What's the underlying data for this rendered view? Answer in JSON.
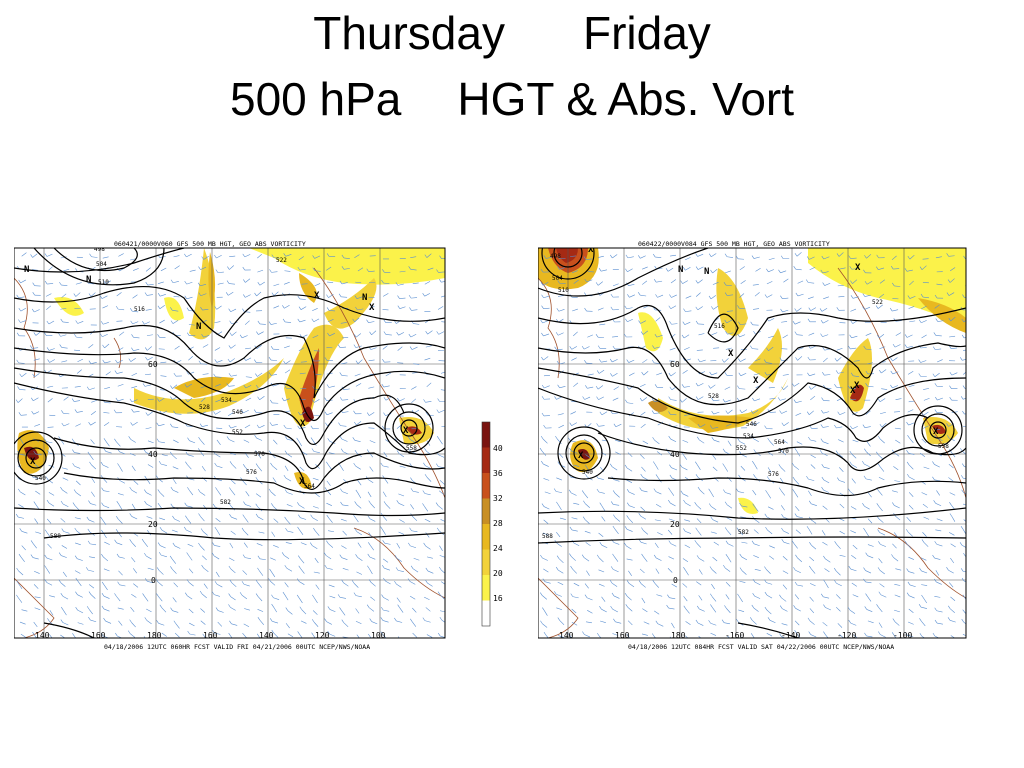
{
  "title": {
    "line1_left": "Thursday",
    "line1_right": "Friday",
    "line2_left": "500 hPa",
    "line2_right": "HGT & Abs. Vort"
  },
  "maps": [
    {
      "header": "060421/0000V060 GFS 500 MB HGT, GEO ABS VORTICITY",
      "footer": "04/18/2006 12UTC 060HR FCST VALID FRI 04/21/2006 00UTC   NCEP/NWS/NOAA",
      "lon_labels": [
        "140",
        "160",
        "180",
        "160",
        "140",
        "120",
        "100"
      ],
      "lat_labels": [
        "60",
        "40",
        "20",
        "0"
      ],
      "contour_labels": [
        "498",
        "504",
        "510",
        "516",
        "522",
        "528",
        "534",
        "540",
        "546",
        "552",
        "558",
        "564",
        "570",
        "576",
        "582",
        "588"
      ]
    },
    {
      "header": "060422/0000V084 GFS 500 MB HGT, GEO ABS VORTICITY",
      "footer": "04/18/2006 12UTC 084HR FCST VALID SAT 04/22/2006 00UTC   NCEP/NWS/NOAA",
      "lon_labels": [
        "140",
        "160",
        "180",
        "-160",
        "-140",
        "-120",
        "-100"
      ],
      "lat_labels": [
        "60",
        "40",
        "20",
        "0"
      ],
      "contour_labels": [
        "498",
        "504",
        "510",
        "516",
        "522",
        "528",
        "534",
        "540",
        "546",
        "552",
        "558",
        "564",
        "570",
        "576",
        "582",
        "588"
      ]
    }
  ],
  "colorbar": {
    "ticks": [
      "40",
      "36",
      "32",
      "28",
      "24",
      "20",
      "16"
    ],
    "colors": [
      "#7a1410",
      "#a52a14",
      "#c8501c",
      "#c88f24",
      "#e8b820",
      "#f2d23a",
      "#fbf24a",
      "#ffffff"
    ]
  },
  "symbols": {
    "high": "X",
    "low": "N"
  }
}
